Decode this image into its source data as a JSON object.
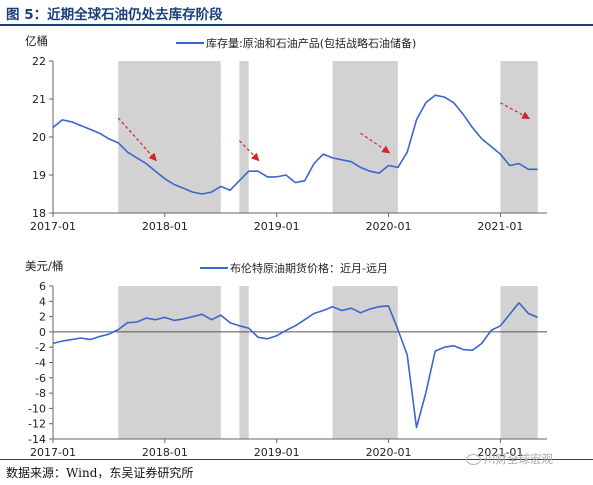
{
  "title": "图 5：近期全球石油仍处去库存阶段",
  "source": "数据来源：Wind，东吴证券研究所",
  "watermark": "川财全球宏观",
  "watermark_icon": "wechat-icon",
  "colors": {
    "line": "#3a66d0",
    "shade": "#d2d2d2",
    "arrow": "#d62424",
    "title": "#1a3f7a"
  },
  "chart_data": [
    {
      "type": "line",
      "unit_label": "亿桶",
      "legend": "库存量:原油和石油产品(包括战略石油储备)",
      "legend_position": "top-center",
      "ylim": [
        18,
        22
      ],
      "yticks": [
        18,
        19,
        20,
        21,
        22
      ],
      "xlim": [
        "2017-01",
        "2021-06"
      ],
      "xticks": [
        "2017-01",
        "2018-01",
        "2019-01",
        "2020-01",
        "2021-01"
      ],
      "grid": false,
      "shaded_periods": [
        [
          "2017-08",
          "2018-07"
        ],
        [
          "2018-09",
          "2018-10"
        ],
        [
          "2019-07",
          "2020-02"
        ],
        [
          "2021-01",
          "2021-05"
        ]
      ],
      "trend_arrows": [
        {
          "from": [
            "2017-08",
            20.5
          ],
          "to": [
            "2017-12",
            19.4
          ]
        },
        {
          "from": [
            "2018-09",
            19.9
          ],
          "to": [
            "2018-11",
            19.4
          ]
        },
        {
          "from": [
            "2019-10",
            20.1
          ],
          "to": [
            "2020-01",
            19.6
          ]
        },
        {
          "from": [
            "2021-01",
            20.9
          ],
          "to": [
            "2021-04",
            20.5
          ]
        }
      ],
      "series": [
        {
          "name": "库存量:原油和石油产品(包括战略石油储备)",
          "x": [
            "2017-01",
            "2017-02",
            "2017-03",
            "2017-04",
            "2017-05",
            "2017-06",
            "2017-07",
            "2017-08",
            "2017-09",
            "2017-10",
            "2017-11",
            "2017-12",
            "2018-01",
            "2018-02",
            "2018-03",
            "2018-04",
            "2018-05",
            "2018-06",
            "2018-07",
            "2018-08",
            "2018-09",
            "2018-10",
            "2018-11",
            "2018-12",
            "2019-01",
            "2019-02",
            "2019-03",
            "2019-04",
            "2019-05",
            "2019-06",
            "2019-07",
            "2019-08",
            "2019-09",
            "2019-10",
            "2019-11",
            "2019-12",
            "2020-01",
            "2020-02",
            "2020-03",
            "2020-04",
            "2020-05",
            "2020-06",
            "2020-07",
            "2020-08",
            "2020-09",
            "2020-10",
            "2020-11",
            "2020-12",
            "2021-01",
            "2021-02",
            "2021-03",
            "2021-04",
            "2021-05"
          ],
          "y": [
            20.25,
            20.45,
            20.4,
            20.3,
            20.2,
            20.1,
            19.95,
            19.85,
            19.6,
            19.45,
            19.3,
            19.1,
            18.9,
            18.75,
            18.65,
            18.55,
            18.5,
            18.55,
            18.7,
            18.6,
            18.85,
            19.1,
            19.1,
            18.95,
            18.95,
            19.0,
            18.8,
            18.85,
            19.3,
            19.55,
            19.45,
            19.4,
            19.35,
            19.2,
            19.1,
            19.05,
            19.25,
            19.2,
            19.6,
            20.45,
            20.9,
            21.1,
            21.05,
            20.9,
            20.6,
            20.25,
            19.95,
            19.75,
            19.55,
            19.25,
            19.3,
            19.15,
            19.15
          ]
        }
      ]
    },
    {
      "type": "line",
      "unit_label": "美元/桶",
      "legend": "布伦特原油期货价格：近月-远月",
      "legend_position": "top-center",
      "ylim": [
        -14,
        6
      ],
      "yticks": [
        -14,
        -12,
        -10,
        -8,
        -6,
        -4,
        -2,
        0,
        2,
        4,
        6
      ],
      "xlim": [
        "2017-01",
        "2021-06"
      ],
      "xticks": [
        "2017-01",
        "2018-01",
        "2019-01",
        "2020-01",
        "2021-01"
      ],
      "grid": false,
      "zero_line": true,
      "shaded_periods": [
        [
          "2017-08",
          "2018-07"
        ],
        [
          "2018-09",
          "2018-10"
        ],
        [
          "2019-07",
          "2020-02"
        ],
        [
          "2021-01",
          "2021-05"
        ]
      ],
      "series": [
        {
          "name": "布伦特原油期货价格：近月-远月",
          "x": [
            "2017-01",
            "2017-02",
            "2017-03",
            "2017-04",
            "2017-05",
            "2017-06",
            "2017-07",
            "2017-08",
            "2017-09",
            "2017-10",
            "2017-11",
            "2017-12",
            "2018-01",
            "2018-02",
            "2018-03",
            "2018-04",
            "2018-05",
            "2018-06",
            "2018-07",
            "2018-08",
            "2018-09",
            "2018-10",
            "2018-11",
            "2018-12",
            "2019-01",
            "2019-02",
            "2019-03",
            "2019-04",
            "2019-05",
            "2019-06",
            "2019-07",
            "2019-08",
            "2019-09",
            "2019-10",
            "2019-11",
            "2019-12",
            "2020-01",
            "2020-02",
            "2020-03",
            "2020-04",
            "2020-05",
            "2020-06",
            "2020-07",
            "2020-08",
            "2020-09",
            "2020-10",
            "2020-11",
            "2020-12",
            "2021-01",
            "2021-02",
            "2021-03",
            "2021-04",
            "2021-05"
          ],
          "y": [
            -1.5,
            -1.2,
            -1.0,
            -0.8,
            -1.0,
            -0.6,
            -0.3,
            0.3,
            1.2,
            1.3,
            1.8,
            1.6,
            1.9,
            1.5,
            1.7,
            2.0,
            2.3,
            1.6,
            2.2,
            1.2,
            0.8,
            0.5,
            -0.7,
            -0.9,
            -0.5,
            0.2,
            0.8,
            1.6,
            2.4,
            2.8,
            3.3,
            2.8,
            3.1,
            2.5,
            3.0,
            3.3,
            3.4,
            0.3,
            -3.0,
            -12.5,
            -8.0,
            -2.5,
            -2.0,
            -1.8,
            -2.3,
            -2.4,
            -1.5,
            0.2,
            0.8,
            2.3,
            3.8,
            2.4,
            1.9
          ]
        }
      ]
    }
  ]
}
